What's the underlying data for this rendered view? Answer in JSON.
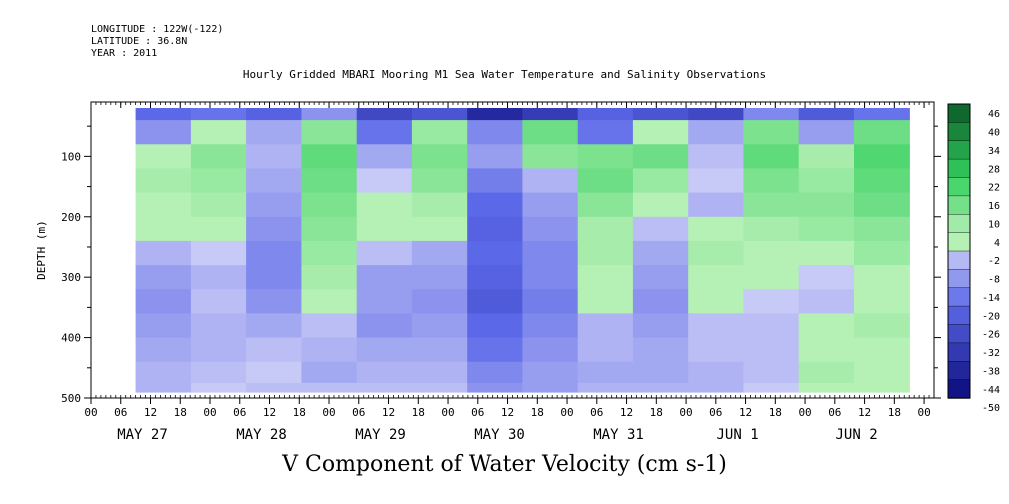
{
  "header": {
    "longitude": "LONGITUDE : 122W(-122)",
    "latitude": "LATITUDE : 36.8N",
    "year": "YEAR : 2011"
  },
  "chart_data": {
    "type": "heatmap",
    "title": "Hourly Gridded MBARI Mooring M1 Sea Water Temperature and Salinity Observations",
    "bottom_title": "V Component of Water Velocity (cm s-1)",
    "ylabel": "DEPTH (m)",
    "ylim": [
      500,
      10
    ],
    "y_ticks": [
      100,
      200,
      300,
      400,
      500
    ],
    "y_reversed": true,
    "xlim_hours": [
      0,
      170
    ],
    "x_hour_ticks": [
      "00",
      "06",
      "12",
      "18",
      "00",
      "06",
      "12",
      "18",
      "00",
      "06",
      "12",
      "18",
      "00",
      "06",
      "12",
      "18",
      "00",
      "06",
      "12",
      "18",
      "00",
      "06",
      "12",
      "18",
      "00",
      "06",
      "12",
      "18",
      "00"
    ],
    "x_day_labels": [
      "MAY 27",
      "MAY 28",
      "MAY 29",
      "MAY 30",
      "MAY 31",
      "JUN  1",
      "JUN  2"
    ],
    "colorbar": {
      "levels": [
        46,
        40,
        34,
        28,
        22,
        16,
        10,
        4,
        -2,
        -8,
        -14,
        -20,
        -26,
        -32,
        -38,
        -44,
        -50
      ],
      "colors": {
        "dark_positive": "#0a5a28",
        "positive": "#34d05e",
        "light_positive": "#b5f0b5",
        "light_negative": "#c7c9f6",
        "negative": "#5b68e8",
        "dark_negative": "#0a0a7a"
      }
    },
    "rows_depth_m": [
      20,
      60,
      100,
      140,
      180,
      220,
      260,
      300,
      340,
      380,
      420,
      460,
      490
    ],
    "columns_day_start": [
      "MAY 27",
      "MAY 27 12",
      "MAY 28",
      "MAY 28 12",
      "MAY 29",
      "MAY 29 12",
      "MAY 30",
      "MAY 30 12",
      "MAY 31",
      "MAY 31 12",
      "JUN 1",
      "JUN 1 12",
      "JUN 2",
      "JUN 2 12"
    ],
    "grid_values": [
      [
        -20,
        -18,
        -22,
        -12,
        -30,
        -26,
        -40,
        -34,
        -22,
        -26,
        -30,
        -14,
        -24,
        -18
      ],
      [
        -12,
        4,
        -8,
        10,
        -18,
        8,
        -14,
        14,
        -18,
        4,
        -8,
        12,
        -10,
        14
      ],
      [
        2,
        10,
        -6,
        16,
        -8,
        12,
        -10,
        10,
        12,
        14,
        -4,
        16,
        6,
        18
      ],
      [
        6,
        8,
        -8,
        14,
        -2,
        10,
        -16,
        -6,
        14,
        8,
        -2,
        12,
        8,
        16
      ],
      [
        4,
        6,
        -10,
        12,
        4,
        6,
        -20,
        -10,
        10,
        4,
        -6,
        10,
        10,
        14
      ],
      [
        2,
        4,
        -12,
        10,
        2,
        2,
        -22,
        -12,
        6,
        -4,
        4,
        6,
        8,
        10
      ],
      [
        -6,
        -2,
        -14,
        8,
        -4,
        -8,
        -20,
        -14,
        6,
        -8,
        6,
        4,
        2,
        8
      ],
      [
        -10,
        -6,
        -14,
        6,
        -10,
        -10,
        -22,
        -14,
        2,
        -10,
        4,
        2,
        -2,
        4
      ],
      [
        -12,
        -4,
        -12,
        4,
        -10,
        -12,
        -24,
        -16,
        4,
        -12,
        2,
        -2,
        -4,
        2
      ],
      [
        -10,
        -6,
        -8,
        -4,
        -12,
        -10,
        -20,
        -14,
        -6,
        -10,
        -4,
        -4,
        2,
        6
      ],
      [
        -8,
        -6,
        -4,
        -6,
        -8,
        -8,
        -18,
        -12,
        -6,
        -8,
        -4,
        -4,
        4,
        4
      ],
      [
        -6,
        -4,
        -2,
        -8,
        -6,
        -6,
        -14,
        -10,
        -8,
        -8,
        -6,
        -4,
        6,
        2
      ],
      [
        -6,
        -2,
        -4,
        -4,
        -4,
        -4,
        -12,
        -10,
        -6,
        -6,
        -6,
        -2,
        4,
        2
      ]
    ]
  }
}
